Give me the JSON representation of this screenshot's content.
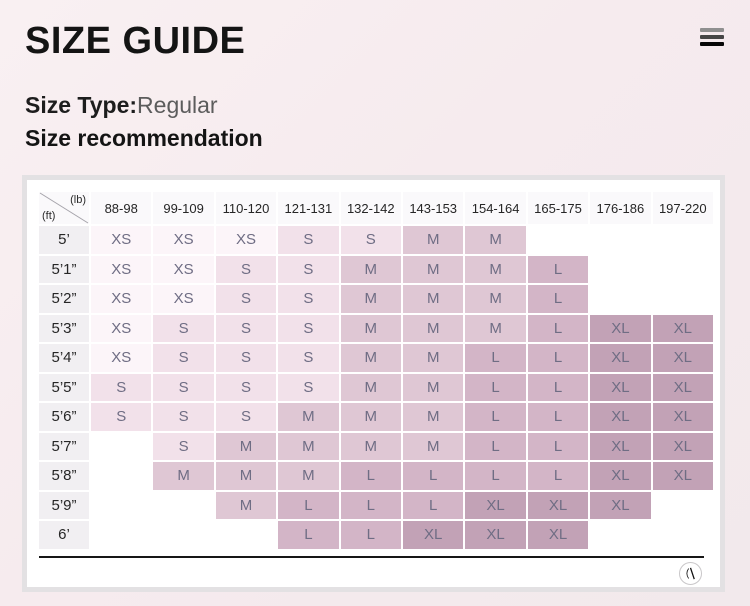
{
  "page": {
    "title": "SIZE GUIDE",
    "size_type_label": "Size Type:",
    "size_type_value": "Regular",
    "section_heading": "Size recommendation"
  },
  "header": {
    "menu_icon": "hamburger-icon"
  },
  "size_colors": {
    "XS": "#fcf5f9",
    "S": "#f2e1ea",
    "M": "#dfc7d4",
    "L": "#d3b5c7",
    "XL": "#c2a2b6"
  },
  "cell_text_color": "#6f6d84",
  "table": {
    "corner": {
      "unit_top": "(lb)",
      "unit_bottom": "(ft)"
    },
    "weight_columns": [
      "88-98",
      "99-109",
      "110-120",
      "121-131",
      "132-142",
      "143-153",
      "154-164",
      "165-175",
      "176-186",
      "197-220"
    ],
    "rows": [
      {
        "height": "5’",
        "sizes": [
          "XS",
          "XS",
          "XS",
          "S",
          "S",
          "M",
          "M",
          "",
          "",
          ""
        ]
      },
      {
        "height": "5’1”",
        "sizes": [
          "XS",
          "XS",
          "S",
          "S",
          "M",
          "M",
          "M",
          "L",
          "",
          ""
        ]
      },
      {
        "height": "5’2”",
        "sizes": [
          "XS",
          "XS",
          "S",
          "S",
          "M",
          "M",
          "M",
          "L",
          "",
          ""
        ]
      },
      {
        "height": "5’3”",
        "sizes": [
          "XS",
          "S",
          "S",
          "S",
          "M",
          "M",
          "M",
          "L",
          "XL",
          "XL"
        ]
      },
      {
        "height": "5’4”",
        "sizes": [
          "XS",
          "S",
          "S",
          "S",
          "M",
          "M",
          "L",
          "L",
          "XL",
          "XL"
        ]
      },
      {
        "height": "5’5”",
        "sizes": [
          "S",
          "S",
          "S",
          "S",
          "M",
          "M",
          "L",
          "L",
          "XL",
          "XL"
        ]
      },
      {
        "height": "5’6”",
        "sizes": [
          "S",
          "S",
          "S",
          "M",
          "M",
          "M",
          "L",
          "L",
          "XL",
          "XL"
        ]
      },
      {
        "height": "5’7”",
        "sizes": [
          "",
          "S",
          "M",
          "M",
          "M",
          "M",
          "L",
          "L",
          "XL",
          "XL"
        ]
      },
      {
        "height": "5’8”",
        "sizes": [
          "",
          "M",
          "M",
          "M",
          "L",
          "L",
          "L",
          "L",
          "XL",
          "XL"
        ]
      },
      {
        "height": "5’9”",
        "sizes": [
          "",
          "",
          "M",
          "L",
          "L",
          "L",
          "XL",
          "XL",
          "XL",
          ""
        ]
      },
      {
        "height": "6’",
        "sizes": [
          "",
          "",
          "",
          "L",
          "L",
          "XL",
          "XL",
          "XL",
          "",
          ""
        ]
      }
    ]
  },
  "footer": {
    "logo_icon": "brand-monogram-icon"
  }
}
